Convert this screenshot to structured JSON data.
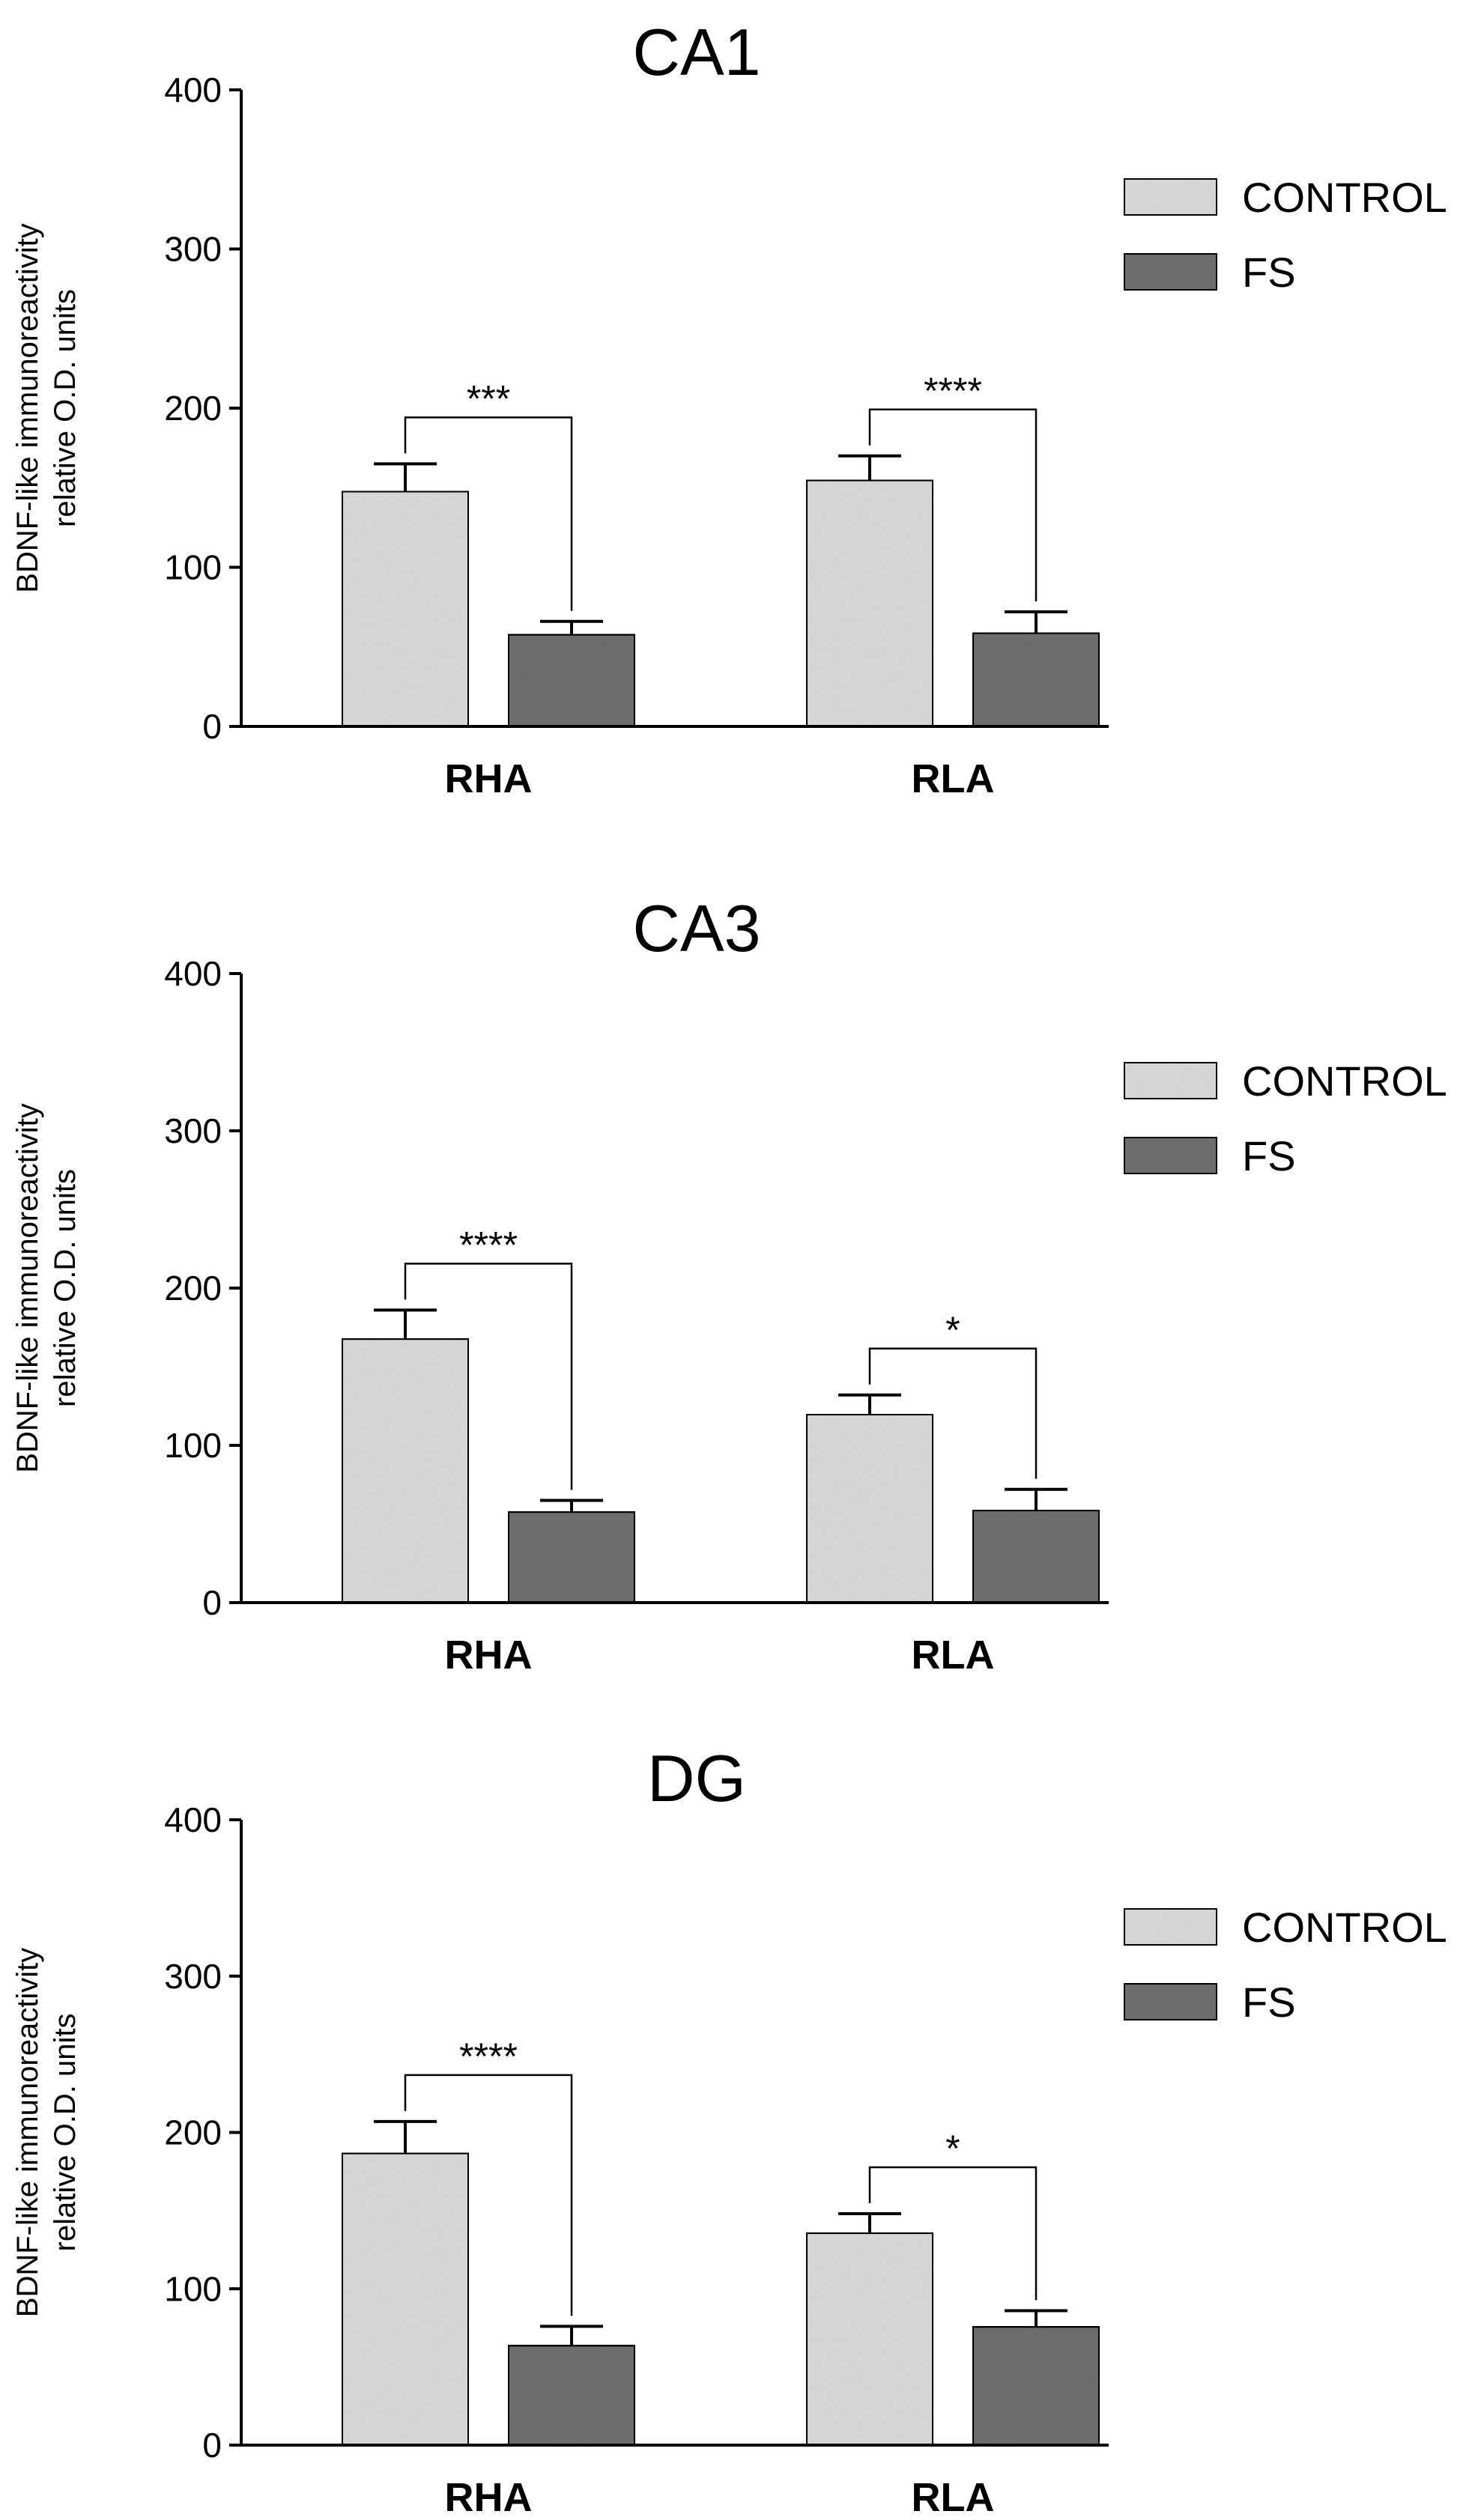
{
  "chart_data": [
    {
      "type": "bar",
      "title": "CA1",
      "ylabel_line1": "BDNF-like immunoreactivity",
      "ylabel_line2": "relative O.D. units",
      "xlabel": "",
      "ylim": [
        0,
        400
      ],
      "yticks": [
        0,
        100,
        200,
        300,
        400
      ],
      "categories": [
        "RHA",
        "RLA"
      ],
      "series": [
        {
          "name": "CONTROL",
          "color": "#d9d9d9",
          "values": [
            148,
            155
          ],
          "errors": [
            17,
            15
          ]
        },
        {
          "name": "FS",
          "color": "#6e6e6e",
          "values": [
            58,
            59
          ],
          "errors": [
            8,
            13
          ]
        }
      ],
      "significance": [
        "***",
        "****"
      ]
    },
    {
      "type": "bar",
      "title": "CA3",
      "ylabel_line1": "BDNF-like immunoreactivity",
      "ylabel_line2": "relative O.D. units",
      "xlabel": "",
      "ylim": [
        0,
        400
      ],
      "yticks": [
        0,
        100,
        200,
        300,
        400
      ],
      "categories": [
        "RHA",
        "RLA"
      ],
      "series": [
        {
          "name": "CONTROL",
          "color": "#d9d9d9",
          "values": [
            168,
            120
          ],
          "errors": [
            18,
            12
          ]
        },
        {
          "name": "FS",
          "color": "#6e6e6e",
          "values": [
            58,
            59
          ],
          "errors": [
            7,
            13
          ]
        }
      ],
      "significance": [
        "****",
        "*"
      ]
    },
    {
      "type": "bar",
      "title": "DG",
      "ylabel_line1": "BDNF-like immunoreactivity",
      "ylabel_line2": "relative O.D. units",
      "xlabel": "",
      "ylim": [
        0,
        400
      ],
      "yticks": [
        0,
        100,
        200,
        300,
        400
      ],
      "categories": [
        "RHA",
        "RLA"
      ],
      "series": [
        {
          "name": "CONTROL",
          "color": "#d9d9d9",
          "values": [
            187,
            136
          ],
          "errors": [
            20,
            12
          ]
        },
        {
          "name": "FS",
          "color": "#6e6e6e",
          "values": [
            64,
            76
          ],
          "errors": [
            12,
            10
          ]
        }
      ],
      "significance": [
        "****",
        "*"
      ]
    }
  ]
}
